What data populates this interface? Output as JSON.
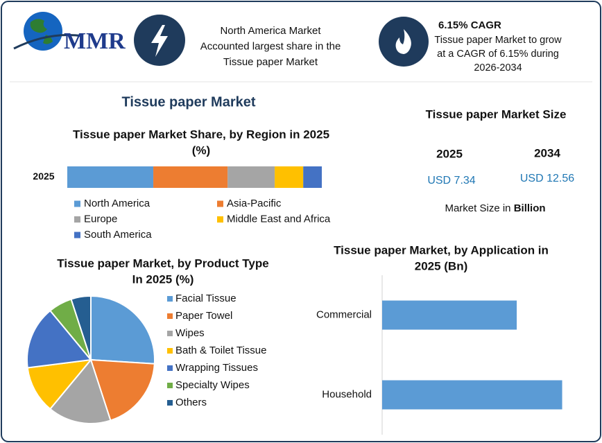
{
  "header": {
    "logo": "MMR",
    "info": [
      "North America Market",
      "Accounted largest share in the",
      "Tissue paper Market"
    ],
    "cagr_title": "6.15% CAGR",
    "cagr_text": [
      "Tissue paper Market to grow",
      "at a CAGR of 6.15% during",
      "2026-2034"
    ]
  },
  "title": "Tissue paper Market",
  "market_size": {
    "title": "Tissue paper Market Size",
    "years": [
      "2025",
      "2034"
    ],
    "values": [
      "USD 7.34",
      "USD 12.56"
    ],
    "note": "Market Size in",
    "unit": "Billion"
  },
  "chart_data": [
    {
      "type": "stacked_bar",
      "title": [
        "Tissue paper Market Share, by Region in 2025",
        "(%)"
      ],
      "categories": [
        "2025"
      ],
      "xlim": [
        0,
        100
      ],
      "series": [
        {
          "name": "North America",
          "color": "#5b9bd5",
          "values": [
            33.8
          ]
        },
        {
          "name": "Asia-Pacific",
          "color": "#ed7d31",
          "values": [
            29.2
          ]
        },
        {
          "name": "Europe",
          "color": "#a5a5a5",
          "values": [
            18.5
          ]
        },
        {
          "name": "Middle East and Africa",
          "color": "#ffc000",
          "values": [
            11.2
          ]
        },
        {
          "name": "South America",
          "color": "#4472c4",
          "values": [
            7.3
          ]
        }
      ]
    },
    {
      "type": "pie",
      "title": [
        "Tissue paper Market, by Product Type",
        "In 2025 (%)"
      ],
      "categories": [
        "Facial Tissue",
        "Paper Towel",
        "Wipes",
        "Bath & Toilet Tissue",
        "Wrapping Tissues",
        "Specialty Wipes",
        "Others"
      ],
      "values": [
        26,
        19,
        16,
        12,
        16,
        6,
        5
      ],
      "colors": [
        "#5b9bd5",
        "#ed7d31",
        "#a5a5a5",
        "#ffc000",
        "#4472c4",
        "#70ad47",
        "#255e91"
      ]
    },
    {
      "type": "hbar",
      "title": [
        "Tissue paper Market, by Application  in",
        "2025 (Bn)"
      ],
      "categories": [
        "Commercial",
        "Household"
      ],
      "values": [
        3.14,
        4.2
      ],
      "color": "#5b9bd5",
      "xlim": [
        0,
        5
      ]
    }
  ]
}
